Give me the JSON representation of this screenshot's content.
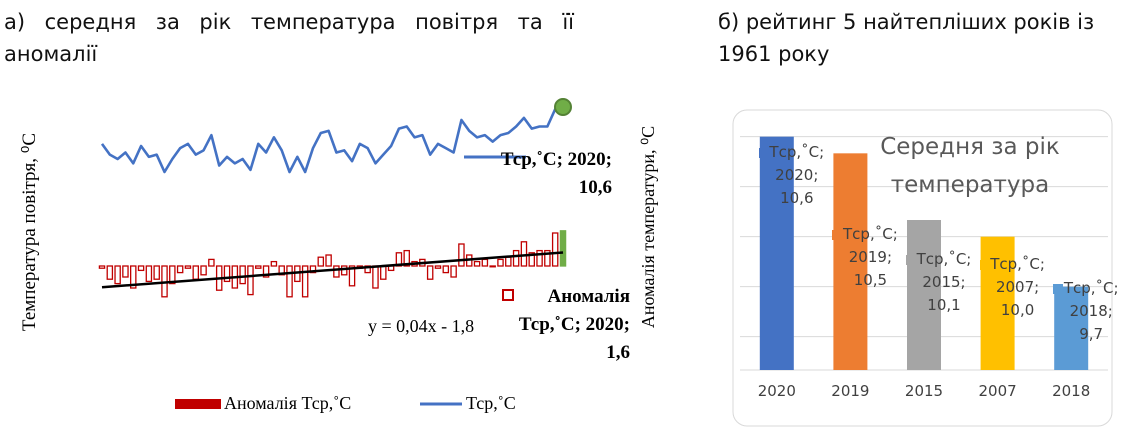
{
  "header_left": "а) середня за рік температура повітря та її аномалії",
  "header_right": "б) рейтинг 5 найтепліших років із 1961 року",
  "chart_data": [
    {
      "type": "combo",
      "y_label": "Температура повітря, ⁰С",
      "y2_label": "Аномалія температури, ⁰С",
      "highlight_color": "#70ad47",
      "series": [
        {
          "name": "Аномалія Тср,˚С",
          "type": "bar",
          "color": "#c00000",
          "axis": "y2",
          "values": [
            -0.1,
            -0.6,
            -0.8,
            -0.5,
            -1.0,
            -0.2,
            -0.7,
            -0.6,
            -1.4,
            -0.8,
            -0.3,
            -0.1,
            -0.6,
            -0.4,
            0.3,
            -1.1,
            -0.7,
            -1.0,
            -0.8,
            -1.3,
            -0.1,
            -0.5,
            0.2,
            -0.4,
            -1.4,
            -0.7,
            -1.4,
            -0.3,
            0.4,
            0.5,
            -0.5,
            -0.4,
            -0.9,
            -0.1,
            -0.3,
            -1.0,
            -0.6,
            -0.2,
            0.6,
            0.7,
            0.2,
            0.3,
            -0.6,
            -0.1,
            -0.3,
            -0.5,
            1.0,
            0.5,
            0.2,
            0.3,
            0.0,
            0.3,
            0.4,
            0.7,
            1.1,
            0.6,
            0.7,
            0.7,
            1.5,
            1.6
          ]
        },
        {
          "name": "Тср,˚С",
          "type": "line",
          "color": "#4472c4",
          "values": [
            8.9,
            8.4,
            8.2,
            8.5,
            8.0,
            8.8,
            8.3,
            8.4,
            7.6,
            8.2,
            8.7,
            8.9,
            8.4,
            8.6,
            9.3,
            7.9,
            8.3,
            8.0,
            8.2,
            7.7,
            8.9,
            8.5,
            9.2,
            8.6,
            7.6,
            8.3,
            7.6,
            8.7,
            9.4,
            9.5,
            8.5,
            8.6,
            8.1,
            8.9,
            8.7,
            8.0,
            8.4,
            8.8,
            9.6,
            9.7,
            9.2,
            9.3,
            8.4,
            8.9,
            8.7,
            8.5,
            10.0,
            9.5,
            9.2,
            9.3,
            9.0,
            9.3,
            9.4,
            9.7,
            10.1,
            9.6,
            9.7,
            9.7,
            10.5,
            10.6
          ]
        }
      ],
      "annotations": [
        "Тср,˚С; 2020; 10,6",
        "Аномалія Тср,˚С; 2020; 1,6",
        "y = 0,04x - 1,8"
      ],
      "trendline": true
    },
    {
      "type": "bar",
      "title": "Середня за рік температура",
      "series_name": "Тср,˚С",
      "categories": [
        "2020",
        "2019",
        "2015",
        "2007",
        "2018"
      ],
      "values": [
        10.6,
        10.5,
        10.1,
        10.0,
        9.7
      ],
      "value_labels": [
        "Тср,˚С; 2020; 10,6",
        "Тср,˚С; 2019; 10,5",
        "Тср,˚С; 2015; 10,1",
        "Тср,˚С; 2007; 10,0",
        "Тср,˚С; 2018; 9,7"
      ],
      "colors": [
        "#4472c4",
        "#ed7d31",
        "#a5a5a5",
        "#ffc000",
        "#5b9bd5"
      ],
      "ylim": [
        9.2,
        10.7
      ],
      "yticks": [
        9.4,
        9.7,
        10.0,
        10.3,
        10.6
      ],
      "grid": true
    }
  ]
}
